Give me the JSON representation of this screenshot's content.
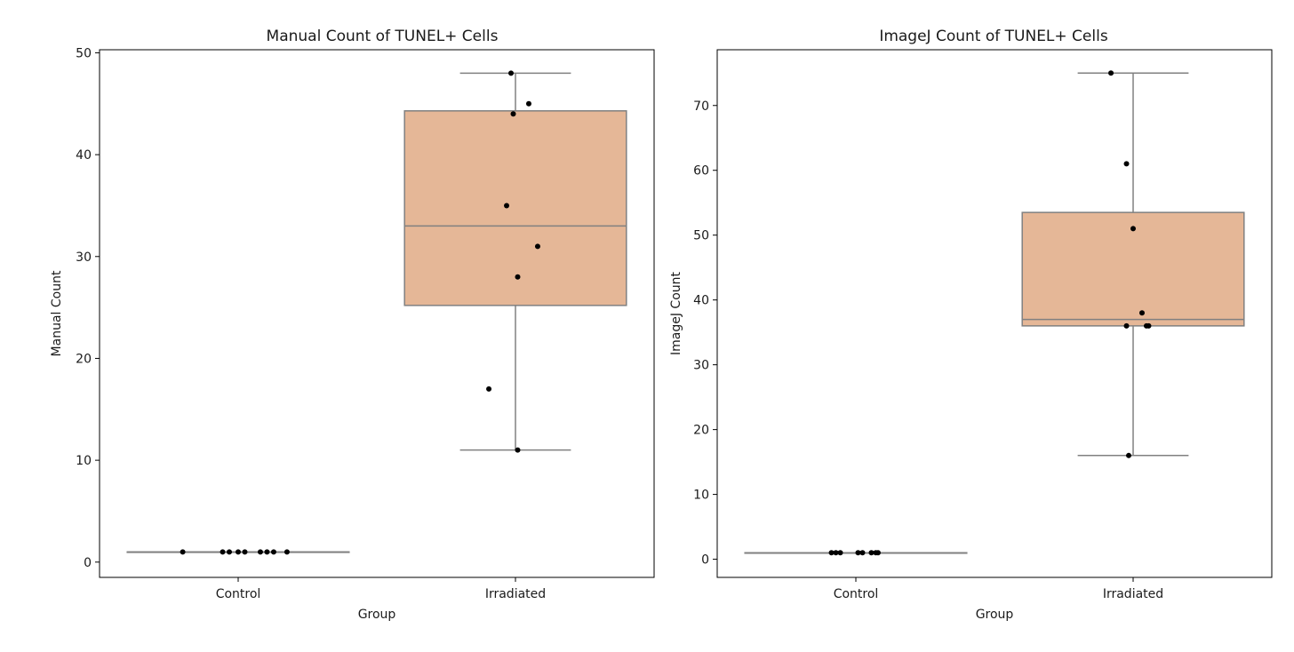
{
  "colors": {
    "box_fill": "#e5b797",
    "box_edge": "#808080",
    "whisker": "#808080",
    "points": "#000000",
    "axes": "#000000"
  },
  "chart_data": [
    {
      "type": "box",
      "title": "Manual Count of TUNEL+ Cells",
      "xlabel": "Group",
      "ylabel": "Manual Count",
      "categories": [
        "Control",
        "Irradiated"
      ],
      "ylim": [
        -1.5,
        50.3
      ],
      "yticks": [
        0,
        10,
        20,
        30,
        40,
        50
      ],
      "grid": false,
      "boxes": [
        {
          "category": "Control",
          "whisker_low": 1,
          "q1": 1,
          "median": 1,
          "q3": 1,
          "whisker_high": 1
        },
        {
          "category": "Irradiated",
          "whisker_low": 11,
          "q1": 25.2,
          "median": 33,
          "q3": 44.3,
          "whisker_high": 48
        }
      ],
      "points": [
        {
          "category": "Control",
          "values": [
            1,
            1,
            1,
            1,
            1,
            1,
            1,
            1,
            1
          ],
          "jitter": [
            -0.25,
            -0.07,
            -0.04,
            0.0,
            0.03,
            0.1,
            0.13,
            0.16,
            0.22
          ]
        },
        {
          "category": "Irradiated",
          "values": [
            48,
            45,
            44,
            35,
            31,
            28,
            17,
            11
          ],
          "jitter": [
            -0.02,
            0.06,
            -0.01,
            -0.04,
            0.1,
            0.01,
            -0.12,
            0.01
          ]
        }
      ]
    },
    {
      "type": "box",
      "title": "ImageJ Count of TUNEL+ Cells",
      "xlabel": "Group",
      "ylabel": "ImageJ Count",
      "categories": [
        "Control",
        "Irradiated"
      ],
      "ylim": [
        -2.8,
        78.6
      ],
      "yticks": [
        0,
        10,
        20,
        30,
        40,
        50,
        60,
        70
      ],
      "grid": false,
      "boxes": [
        {
          "category": "Control",
          "whisker_low": 1,
          "q1": 1,
          "median": 1,
          "q3": 1,
          "whisker_high": 1
        },
        {
          "category": "Irradiated",
          "whisker_low": 16,
          "q1": 36,
          "median": 37,
          "q3": 53.5,
          "whisker_high": 75
        }
      ],
      "points": [
        {
          "category": "Control",
          "values": [
            1,
            1,
            1,
            1,
            1,
            1,
            1,
            1
          ],
          "jitter": [
            -0.11,
            -0.09,
            -0.07,
            0.01,
            0.03,
            0.07,
            0.09,
            0.1
          ]
        },
        {
          "category": "Irradiated",
          "values": [
            75,
            61,
            51,
            38,
            36,
            36,
            36,
            16
          ],
          "jitter": [
            -0.1,
            -0.03,
            0.0,
            0.04,
            -0.03,
            0.06,
            0.07,
            -0.02
          ]
        }
      ]
    }
  ]
}
